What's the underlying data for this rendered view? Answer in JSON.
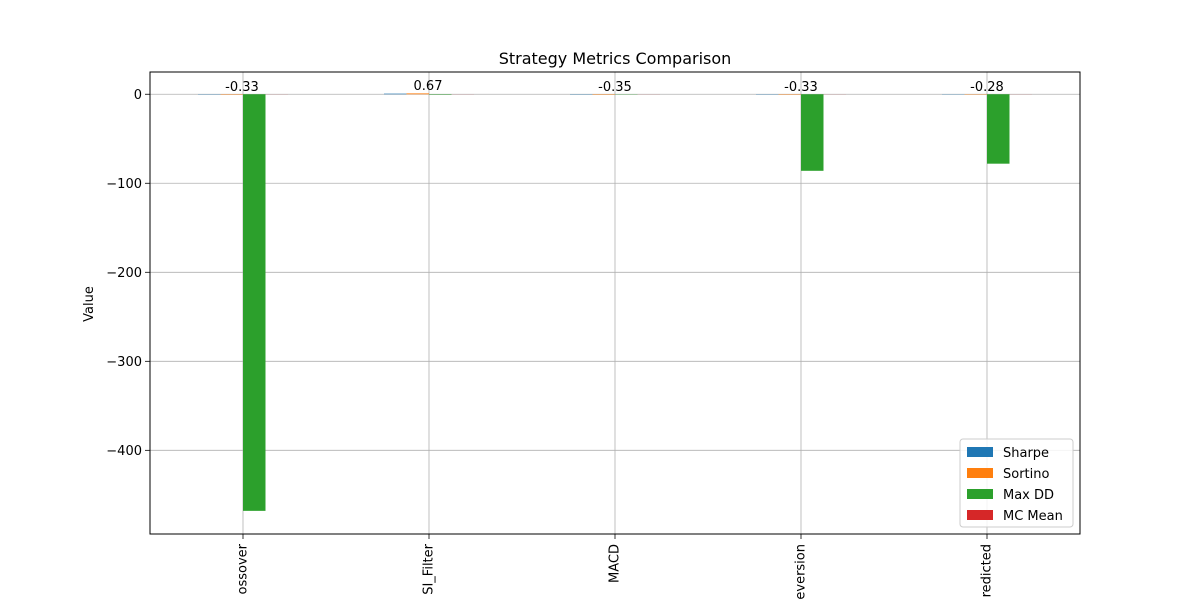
{
  "chart_data": {
    "type": "bar",
    "title": "Strategy Metrics Comparison",
    "xlabel": "",
    "ylabel": "Value",
    "categories": [
      "ossover",
      "SI_Filter",
      "MACD",
      "eversion",
      "redicted"
    ],
    "ylim": [
      -494,
      25
    ],
    "yticks": [
      0,
      -100,
      -200,
      -300,
      -400
    ],
    "ytick_labels": [
      "0",
      "−100",
      "−200",
      "−300",
      "−400"
    ],
    "grid": true,
    "legend_position": "bottom-right",
    "series": [
      {
        "name": "Sharpe",
        "color": "#1f77b4",
        "values": [
          -0.33,
          0.67,
          -0.35,
          -0.33,
          -0.28
        ]
      },
      {
        "name": "Sortino",
        "color": "#ff7f0e",
        "values": [
          -0.45,
          0.95,
          -0.48,
          -0.45,
          -0.38
        ]
      },
      {
        "name": "Max DD",
        "color": "#2ca02c",
        "values": [
          -468,
          -0.5,
          -0.3,
          -86,
          -78
        ]
      },
      {
        "name": "MC Mean",
        "color": "#d62728",
        "values": [
          -0.1,
          0.1,
          -0.1,
          -0.1,
          -0.1
        ]
      }
    ],
    "data_labels": [
      "-0.33",
      "0.67",
      "-0.35",
      "-0.33",
      "-0.28"
    ]
  }
}
